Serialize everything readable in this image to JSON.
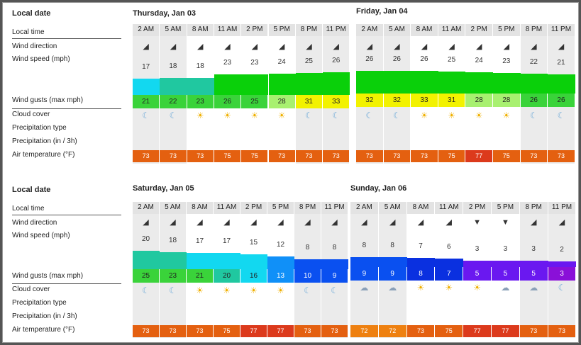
{
  "row_labels": {
    "local_date": "Local date",
    "local_time": "Local time",
    "wind_direction": "Wind direction",
    "wind_speed": "Wind speed  (mph)",
    "wind_gusts": "Wind gusts  (max mph)",
    "cloud_cover": "Cloud cover",
    "precip_type": "Precipitation type",
    "precip_amount": "Precipitation  (in / 3h)",
    "air_temp": "Air temperature  (°F)"
  },
  "times": [
    "2 AM",
    "5 AM",
    "8 AM",
    "11 AM",
    "2 PM",
    "5 PM",
    "8 PM",
    "11 PM"
  ],
  "days": [
    {
      "title": "Thursday, Jan 03",
      "wind_dir": [
        "◢",
        "◢",
        "◢",
        "◢",
        "◢",
        "◢",
        "◢",
        "◢"
      ],
      "speed": [
        "17",
        "18",
        "18",
        "23",
        "23",
        "24",
        "25",
        "26"
      ],
      "speed_colors": [
        "#12d8f0",
        "#20c8a0",
        "#20c8a0",
        "#0ad00a",
        "#0ad00a",
        "#0ad00a",
        "#0ad00a",
        "#0ad00a"
      ],
      "gusts": [
        "21",
        "22",
        "23",
        "26",
        "25",
        "28",
        "31",
        "33"
      ],
      "gust_colors": [
        "#3ad33a",
        "#3ad33a",
        "#3ad33a",
        "#3ad33a",
        "#3ad33a",
        "#a8f070",
        "#f2f200",
        "#f2f200"
      ],
      "cloud": [
        "☾",
        "☾",
        "☀",
        "☀",
        "☀",
        "☀",
        "☾",
        "☾"
      ],
      "temps": [
        "73",
        "73",
        "73",
        "75",
        "75",
        "73",
        "73",
        "73"
      ],
      "temp_colors": [
        "#e46010",
        "#e46010",
        "#e46010",
        "#e46010",
        "#e46010",
        "#e46010",
        "#e46010",
        "#e46010"
      ]
    },
    {
      "title": "Friday, Jan 04",
      "wind_dir": [
        "◢",
        "◢",
        "◢",
        "◢",
        "◢",
        "◢",
        "◢",
        "◢"
      ],
      "speed": [
        "26",
        "26",
        "26",
        "25",
        "24",
        "23",
        "22",
        "21"
      ],
      "speed_colors": [
        "#0ad00a",
        "#0ad00a",
        "#0ad00a",
        "#0ad00a",
        "#0ad00a",
        "#0ad00a",
        "#0ad00a",
        "#0ad00a"
      ],
      "gusts": [
        "32",
        "32",
        "33",
        "31",
        "28",
        "28",
        "26",
        "26"
      ],
      "gust_colors": [
        "#f2f200",
        "#f2f200",
        "#f2f200",
        "#f2f200",
        "#a8f070",
        "#a8f070",
        "#3ad33a",
        "#3ad33a"
      ],
      "cloud": [
        "☾",
        "☾",
        "☀",
        "☀",
        "☀",
        "☀",
        "☾",
        "☾"
      ],
      "temps": [
        "73",
        "73",
        "73",
        "75",
        "77",
        "75",
        "73",
        "73"
      ],
      "temp_colors": [
        "#e46010",
        "#e46010",
        "#e46010",
        "#e46010",
        "#dc3a1c",
        "#e46010",
        "#e46010",
        "#e46010"
      ]
    },
    {
      "title": "Saturday, Jan 05",
      "wind_dir": [
        "◢",
        "◢",
        "◢",
        "◢",
        "◢",
        "◢",
        "◢",
        "◢"
      ],
      "speed": [
        "20",
        "18",
        "17",
        "17",
        "15",
        "12",
        "8",
        "8"
      ],
      "speed_colors": [
        "#20c8a0",
        "#20c8a0",
        "#12d8f0",
        "#12d8f0",
        "#12d8f0",
        "#1090f8",
        "#0a50f0",
        "#0a50f0"
      ],
      "gusts": [
        "25",
        "23",
        "21",
        "20",
        "16",
        "13",
        "10",
        "9"
      ],
      "gust_colors": [
        "#3ad33a",
        "#3ad33a",
        "#3ad33a",
        "#20c8a0",
        "#12d8f0",
        "#1090f8",
        "#0a50f0",
        "#0a50f0"
      ],
      "cloud": [
        "☾",
        "☾",
        "☀",
        "☀",
        "☀",
        "☀",
        "☾",
        "☾"
      ],
      "temps": [
        "73",
        "73",
        "73",
        "75",
        "77",
        "77",
        "73",
        "73"
      ],
      "temp_colors": [
        "#e46010",
        "#e46010",
        "#e46010",
        "#e46010",
        "#dc3a1c",
        "#dc3a1c",
        "#e46010",
        "#e46010"
      ]
    },
    {
      "title": "Sunday, Jan 06",
      "wind_dir": [
        "◢",
        "◢",
        "◢",
        "◢",
        "▼",
        "▼",
        "◢",
        "◢"
      ],
      "speed": [
        "8",
        "8",
        "7",
        "6",
        "3",
        "3",
        "3",
        "2"
      ],
      "speed_colors": [
        "#0a50f0",
        "#0a50f0",
        "#0a30e0",
        "#0a30e0",
        "#6a18f0",
        "#6a18f0",
        "#6a18f0",
        "#6a18f0"
      ],
      "gusts": [
        "9",
        "9",
        "8",
        "7",
        "5",
        "5",
        "5",
        "3"
      ],
      "gust_colors": [
        "#0a50f0",
        "#0a50f0",
        "#0a30e0",
        "#0a30e0",
        "#6a18f0",
        "#6a18f0",
        "#6a18f0",
        "#8a10d8"
      ],
      "cloud": [
        "☁",
        "☁",
        "☀",
        "☀",
        "☀",
        "☁",
        "☁",
        "☾"
      ],
      "temps": [
        "72",
        "72",
        "73",
        "75",
        "77",
        "77",
        "73",
        "73"
      ],
      "temp_colors": [
        "#ee8010",
        "#ee8010",
        "#e46010",
        "#e46010",
        "#dc3a1c",
        "#dc3a1c",
        "#e46010",
        "#e46010"
      ]
    }
  ]
}
